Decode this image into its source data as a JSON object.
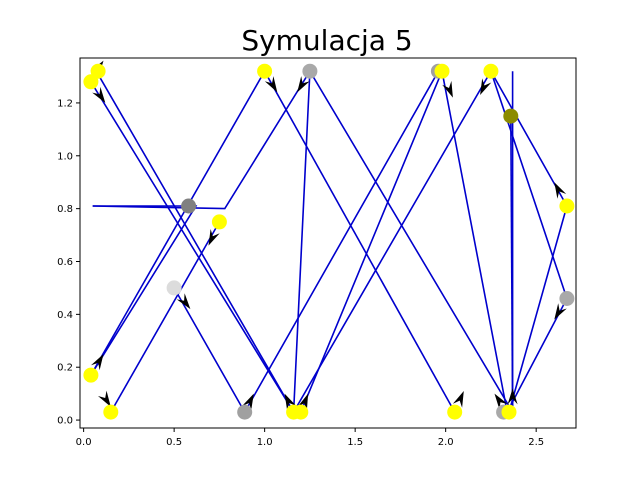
{
  "chart_data": {
    "type": "scatter",
    "title": "Symulacja 5",
    "xlabel": "",
    "ylabel": "",
    "xlim": [
      -0.02,
      2.72
    ],
    "ylim": [
      -0.03,
      1.37
    ],
    "xticks": [
      0.0,
      0.5,
      1.0,
      1.5,
      2.0,
      2.5
    ],
    "xtick_labels": [
      "0.0",
      "0.5",
      "1.0",
      "1.5",
      "2.0",
      "2.5"
    ],
    "yticks": [
      0.0,
      0.2,
      0.4,
      0.6,
      0.8,
      1.0,
      1.2
    ],
    "ytick_labels": [
      "0.0",
      "0.2",
      "0.4",
      "0.6",
      "0.8",
      "1.0",
      "1.2"
    ],
    "grid": false,
    "line_color": "#0000cd",
    "arrow_color": "#000000",
    "paths": [
      {
        "points": [
          [
            0.08,
            1.32
          ],
          [
            0.04,
            1.28
          ],
          [
            1.16,
            0.03
          ],
          [
            1.25,
            1.32
          ],
          [
            2.37,
            0.03
          ],
          [
            2.37,
            1.32
          ]
        ]
      },
      {
        "points": [
          [
            0.04,
            0.17
          ],
          [
            0.62,
            0.81
          ],
          [
            0.05,
            0.81
          ]
        ]
      },
      {
        "points": [
          [
            0.05,
            0.81
          ],
          [
            0.78,
            0.8
          ],
          [
            1.25,
            1.32
          ]
        ]
      },
      {
        "points": [
          [
            0.15,
            0.03
          ],
          [
            0.75,
            0.75
          ]
        ]
      },
      {
        "points": [
          [
            0.5,
            0.5
          ],
          [
            0.89,
            0.03
          ],
          [
            1.96,
            1.32
          ]
        ]
      },
      {
        "points": [
          [
            0.07,
            1.32
          ],
          [
            1.16,
            0.03
          ],
          [
            2.25,
            1.32
          ],
          [
            2.67,
            0.81
          ]
        ]
      },
      {
        "points": [
          [
            1.0,
            1.32
          ],
          [
            2.05,
            0.03
          ]
        ]
      },
      {
        "points": [
          [
            1.0,
            1.32
          ],
          [
            0.04,
            0.17
          ]
        ]
      },
      {
        "points": [
          [
            1.2,
            0.03
          ],
          [
            1.98,
            1.32
          ],
          [
            2.34,
            0.03
          ],
          [
            2.67,
            0.46
          ]
        ]
      },
      {
        "points": [
          [
            2.35,
            0.03
          ],
          [
            2.67,
            0.81
          ]
        ]
      },
      {
        "points": [
          [
            2.25,
            1.32
          ],
          [
            2.67,
            0.46
          ]
        ]
      },
      {
        "points": [
          [
            2.36,
            1.15
          ],
          [
            2.37,
            0.03
          ]
        ]
      }
    ],
    "arrows": [
      {
        "from": [
          0.04,
          1.28
        ],
        "to": [
          0.12,
          1.2
        ]
      },
      {
        "from": [
          0.06,
          1.31
        ],
        "to": [
          0.11,
          1.36
        ]
      },
      {
        "from": [
          0.04,
          0.17
        ],
        "to": [
          0.11,
          0.25
        ]
      },
      {
        "from": [
          0.04,
          0.17
        ],
        "to": [
          0.15,
          0.05
        ]
      },
      {
        "from": [
          0.5,
          0.5
        ],
        "to": [
          0.59,
          0.42
        ]
      },
      {
        "from": [
          0.75,
          0.75
        ],
        "to": [
          0.69,
          0.66
        ]
      },
      {
        "from": [
          1.0,
          1.32
        ],
        "to": [
          1.07,
          1.24
        ]
      },
      {
        "from": [
          1.25,
          1.32
        ],
        "to": [
          1.18,
          1.24
        ]
      },
      {
        "from": [
          1.16,
          0.03
        ],
        "to": [
          1.11,
          0.1
        ]
      },
      {
        "from": [
          1.2,
          0.03
        ],
        "to": [
          1.24,
          0.1
        ]
      },
      {
        "from": [
          0.89,
          0.03
        ],
        "to": [
          0.94,
          0.1
        ]
      },
      {
        "from": [
          1.98,
          1.32
        ],
        "to": [
          2.04,
          1.22
        ]
      },
      {
        "from": [
          2.25,
          1.32
        ],
        "to": [
          2.19,
          1.23
        ]
      },
      {
        "from": [
          2.05,
          0.03
        ],
        "to": [
          2.1,
          0.11
        ]
      },
      {
        "from": [
          2.34,
          0.03
        ],
        "to": [
          2.27,
          0.1
        ]
      },
      {
        "from": [
          2.37,
          0.03
        ],
        "to": [
          2.37,
          0.12
        ]
      },
      {
        "from": [
          2.67,
          0.81
        ],
        "to": [
          2.6,
          0.9
        ]
      },
      {
        "from": [
          2.67,
          0.46
        ],
        "to": [
          2.6,
          0.38
        ]
      }
    ],
    "points": [
      {
        "x": 0.04,
        "y": 1.28,
        "color": "#ffff00"
      },
      {
        "x": 0.08,
        "y": 1.32,
        "color": "#ffff00"
      },
      {
        "x": 0.04,
        "y": 0.17,
        "color": "#ffff00"
      },
      {
        "x": 0.15,
        "y": 0.03,
        "color": "#ffff00"
      },
      {
        "x": 0.5,
        "y": 0.5,
        "color": "#dcdcdc"
      },
      {
        "x": 0.58,
        "y": 0.81,
        "color": "#808080"
      },
      {
        "x": 0.75,
        "y": 0.75,
        "color": "#ffff00"
      },
      {
        "x": 0.89,
        "y": 0.03,
        "color": "#a0a0a0"
      },
      {
        "x": 1.0,
        "y": 1.32,
        "color": "#ffff00"
      },
      {
        "x": 1.16,
        "y": 0.03,
        "color": "#ffff00"
      },
      {
        "x": 1.2,
        "y": 0.03,
        "color": "#ffff00"
      },
      {
        "x": 1.25,
        "y": 1.32,
        "color": "#a9a9a9"
      },
      {
        "x": 1.96,
        "y": 1.32,
        "color": "#a0a0a0"
      },
      {
        "x": 1.98,
        "y": 1.32,
        "color": "#ffff00"
      },
      {
        "x": 2.05,
        "y": 0.03,
        "color": "#ffff00"
      },
      {
        "x": 2.25,
        "y": 1.32,
        "color": "#ffff00"
      },
      {
        "x": 2.32,
        "y": 0.03,
        "color": "#a9a9a9"
      },
      {
        "x": 2.35,
        "y": 0.03,
        "color": "#ffff00"
      },
      {
        "x": 2.36,
        "y": 1.15,
        "color": "#8b8b00"
      },
      {
        "x": 2.67,
        "y": 0.81,
        "color": "#ffff00"
      },
      {
        "x": 2.67,
        "y": 0.46,
        "color": "#a9a9a9"
      }
    ]
  }
}
